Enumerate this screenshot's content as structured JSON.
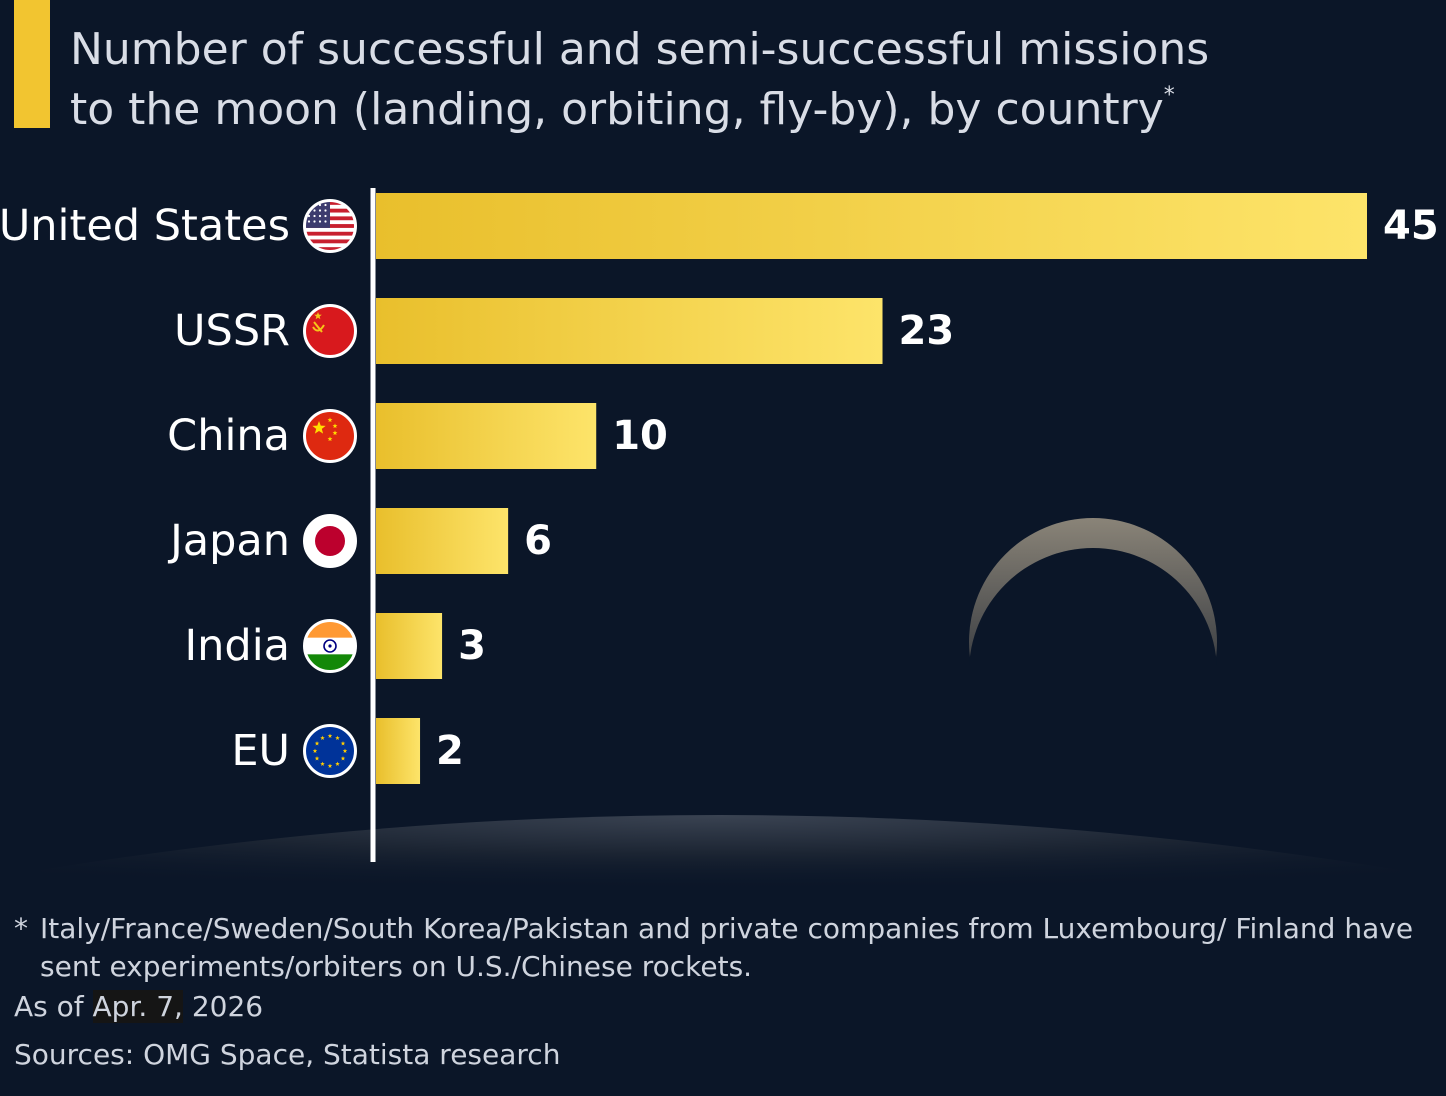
{
  "title": {
    "line1": "Number of successful and semi-successful missions",
    "line2": "to the moon (landing, orbiting, fly-by), by country",
    "marker": "*"
  },
  "chart_data": {
    "type": "bar",
    "orientation": "horizontal",
    "title": "Number of successful and semi-successful missions to the moon (landing, orbiting, fly-by), by country*",
    "categories": [
      "United States",
      "USSR",
      "China",
      "Japan",
      "India",
      "EU"
    ],
    "values": [
      45,
      23,
      10,
      6,
      3,
      2
    ],
    "icons": [
      "us-flag-icon",
      "ussr-flag-icon",
      "china-flag-icon",
      "japan-flag-icon",
      "india-flag-icon",
      "eu-flag-icon"
    ],
    "xlim": [
      0,
      45
    ],
    "grid": false,
    "data_labels": true,
    "bar_color_start": "#e9bf2c",
    "bar_color_end": "#fde46a"
  },
  "footnote": {
    "marker": "*",
    "text": "Italy/France/Sweden/South Korea/Pakistan and private companies from Luxembourg/ Finland have sent experiments/orbiters on U.S./Chinese rockets."
  },
  "as_of": {
    "prefix": "As of ",
    "date_highlight": "Apr. 7,",
    "year": " 2026"
  },
  "sources": "Sources: OMG Space, Statista research",
  "colors": {
    "background": "#0b1628",
    "accent": "#f2c530",
    "text": "#ffffff",
    "muted_text": "#cfd4de"
  }
}
